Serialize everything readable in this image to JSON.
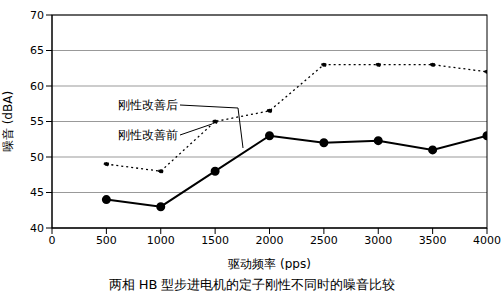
{
  "chart_data": {
    "type": "line",
    "title": "两相 HB 型步进电机的定子刚性不同时的噪音比较",
    "x_label": "驱动频率 (pps)",
    "y_label": "噪音 (dBA)",
    "x": [
      500,
      1000,
      1500,
      2000,
      2500,
      3000,
      3500,
      4000
    ],
    "series": [
      {
        "name": "刚性改善后",
        "color": "#000000",
        "line_style": "solid",
        "marker": "circle",
        "values": [
          44,
          43,
          48,
          53,
          52,
          52.3,
          51,
          53
        ]
      },
      {
        "name": "刚性改善前",
        "color": "#000000",
        "line_style": "dotted",
        "marker": "circle",
        "values": [
          49,
          48,
          55,
          56.5,
          63,
          63,
          63,
          62
        ]
      }
    ],
    "xlim": [
      0,
      4000
    ],
    "xticks": [
      0,
      500,
      1000,
      1500,
      2000,
      2500,
      3000,
      3500,
      4000
    ],
    "ylim": [
      40,
      70
    ],
    "yticks": [
      40,
      45,
      50,
      55,
      60,
      65,
      70
    ],
    "grid": true,
    "legend": "none"
  }
}
